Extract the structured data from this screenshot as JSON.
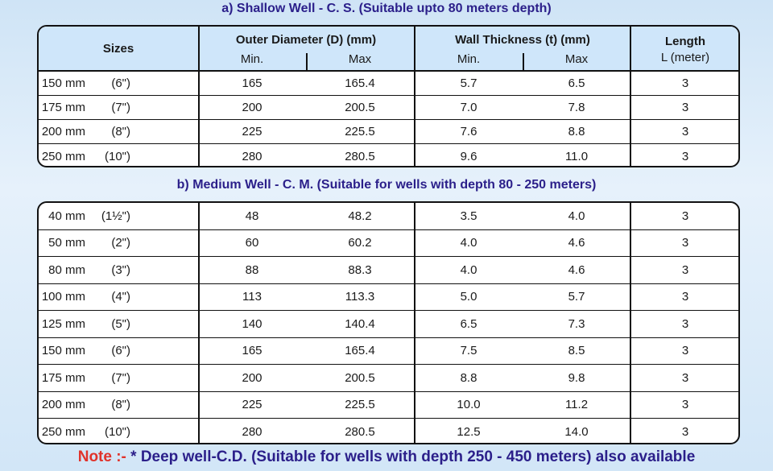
{
  "section_a": {
    "title": "a) Shallow Well - C. S. (Suitable upto 80 meters depth)",
    "header": {
      "sizes": "Sizes",
      "outer_diameter": "Outer Diameter (D) (mm)",
      "wall_thickness": "Wall Thickness (t) (mm)",
      "length": "Length",
      "length_unit": "L (meter)",
      "min": "Min.",
      "max": "Max"
    },
    "rows": [
      {
        "size_mm": "150 mm",
        "size_in": "(6\")",
        "od_min": "165",
        "od_max": "165.4",
        "wt_min": "5.7",
        "wt_max": "6.5",
        "length": "3"
      },
      {
        "size_mm": "175 mm",
        "size_in": "(7\")",
        "od_min": "200",
        "od_max": "200.5",
        "wt_min": "7.0",
        "wt_max": "7.8",
        "length": "3"
      },
      {
        "size_mm": "200 mm",
        "size_in": "(8\")",
        "od_min": "225",
        "od_max": "225.5",
        "wt_min": "7.6",
        "wt_max": "8.8",
        "length": "3"
      },
      {
        "size_mm": "250 mm",
        "size_in": "(10\")",
        "od_min": "280",
        "od_max": "280.5",
        "wt_min": "9.6",
        "wt_max": "11.0",
        "length": "3"
      }
    ]
  },
  "section_b": {
    "title": "b) Medium Well - C. M. (Suitable for wells with depth 80 - 250 meters)",
    "rows": [
      {
        "size_mm": "40 mm",
        "size_in": "(1½\")",
        "od_min": "48",
        "od_max": "48.2",
        "wt_min": "3.5",
        "wt_max": "4.0",
        "length": "3"
      },
      {
        "size_mm": "50 mm",
        "size_in": "(2\")",
        "od_min": "60",
        "od_max": "60.2",
        "wt_min": "4.0",
        "wt_max": "4.6",
        "length": "3"
      },
      {
        "size_mm": "80 mm",
        "size_in": "(3\")",
        "od_min": "88",
        "od_max": "88.3",
        "wt_min": "4.0",
        "wt_max": "4.6",
        "length": "3"
      },
      {
        "size_mm": "100 mm",
        "size_in": "(4\")",
        "od_min": "113",
        "od_max": "113.3",
        "wt_min": "5.0",
        "wt_max": "5.7",
        "length": "3"
      },
      {
        "size_mm": "125 mm",
        "size_in": "(5\")",
        "od_min": "140",
        "od_max": "140.4",
        "wt_min": "6.5",
        "wt_max": "7.3",
        "length": "3"
      },
      {
        "size_mm": "150 mm",
        "size_in": "(6\")",
        "od_min": "165",
        "od_max": "165.4",
        "wt_min": "7.5",
        "wt_max": "8.5",
        "length": "3"
      },
      {
        "size_mm": "175 mm",
        "size_in": "(7\")",
        "od_min": "200",
        "od_max": "200.5",
        "wt_min": "8.8",
        "wt_max": "9.8",
        "length": "3"
      },
      {
        "size_mm": "200 mm",
        "size_in": "(8\")",
        "od_min": "225",
        "od_max": "225.5",
        "wt_min": "10.0",
        "wt_max": "11.2",
        "length": "3"
      },
      {
        "size_mm": "250 mm",
        "size_in": "(10\")",
        "od_min": "280",
        "od_max": "280.5",
        "wt_min": "12.5",
        "wt_max": "14.0",
        "length": "3"
      }
    ]
  },
  "note": {
    "label": "Note :-",
    "text": "* Deep well-C.D. (Suitable for wells with depth 250 - 450 meters) also available"
  },
  "colors": {
    "title": "#2b1f8a",
    "note_label": "#e0322a",
    "header_bg": "#cfe6fa",
    "page_bg": "#dbeaf8"
  }
}
